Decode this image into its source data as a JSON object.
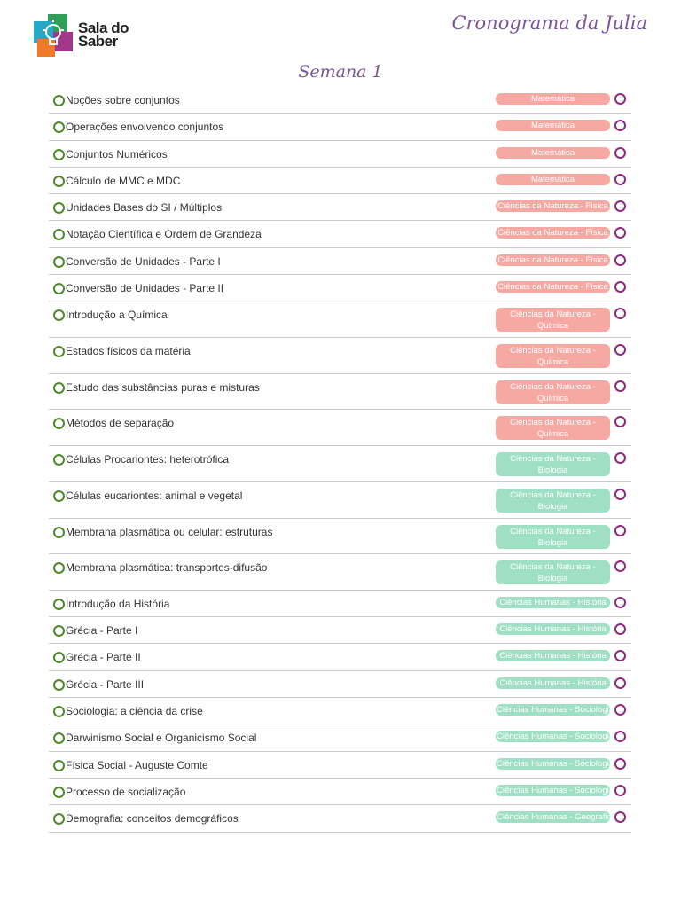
{
  "header": {
    "logo_line1": "Sala do",
    "logo_line2": "Saber",
    "schedule_title": "Cronograma da  Julia"
  },
  "week_title": "Semana 1",
  "colors": {
    "pink": "#f6a8a3",
    "green": "#9fe0c4",
    "check": "#4f8a2a",
    "done": "#8e2a7d",
    "title": "#7a559a"
  },
  "rows": [
    {
      "topic": "Noções sobre conjuntos",
      "subject": "Matemática",
      "color": "pink"
    },
    {
      "topic": "Operações envolvendo conjuntos",
      "subject": "Matemática",
      "color": "pink"
    },
    {
      "topic": "Conjuntos Numéricos",
      "subject": "Matemática",
      "color": "pink"
    },
    {
      "topic": "Cálculo de MMC e MDC",
      "subject": "Matemática",
      "color": "pink"
    },
    {
      "topic": "Unidades Bases do SI / Múltiplos",
      "subject": "Ciências da Natureza - Física",
      "color": "pink"
    },
    {
      "topic": "Notação Científica e Ordem de Grandeza",
      "subject": "Ciências da Natureza - Física",
      "color": "pink"
    },
    {
      "topic": "Conversão de Unidades - Parte I",
      "subject": "Ciências da Natureza - Física",
      "color": "pink"
    },
    {
      "topic": "Conversão de Unidades - Parte II",
      "subject": "Ciências da Natureza - Física",
      "color": "pink"
    },
    {
      "topic": "Introdução a Química",
      "subject": "Ciências da Natureza - Química",
      "color": "pink"
    },
    {
      "topic": "Estados físicos da matéria",
      "subject": "Ciências da Natureza - Química",
      "color": "pink"
    },
    {
      "topic": "Estudo das substâncias puras e misturas",
      "subject": "Ciências da Natureza - Química",
      "color": "pink"
    },
    {
      "topic": "Métodos de separação",
      "subject": "Ciências da Natureza - Química",
      "color": "pink"
    },
    {
      "topic": "Células Procariontes: heterotrófica",
      "subject": "Ciências da Natureza - Biologia",
      "color": "green"
    },
    {
      "topic": "Células eucariontes: animal e vegetal",
      "subject": "Ciências da Natureza - Biologia",
      "color": "green"
    },
    {
      "topic": "Membrana plasmática ou celular: estruturas",
      "subject": "Ciências da Natureza - Biologia",
      "color": "green"
    },
    {
      "topic": "Membrana plasmática: transportes-difusão",
      "subject": "Ciências da Natureza - Biologia",
      "color": "green"
    },
    {
      "topic": "Introdução da História",
      "subject": "Ciências Humanas - História",
      "color": "green"
    },
    {
      "topic": "Grécia - Parte I",
      "subject": "Ciências Humanas - História",
      "color": "green"
    },
    {
      "topic": "Grécia - Parte II",
      "subject": "Ciências Humanas - História",
      "color": "green"
    },
    {
      "topic": "Grécia - Parte III",
      "subject": "Ciências Humanas - História",
      "color": "green"
    },
    {
      "topic": "Sociologia: a ciência da crise",
      "subject": "Ciências Humanas - Sociologia",
      "color": "green"
    },
    {
      "topic": "Darwinismo Social e Organicismo Social",
      "subject": "Ciências Humanas - Sociologia",
      "color": "green"
    },
    {
      "topic": "Física Social - Auguste Comte",
      "subject": "Ciências Humanas - Sociologia",
      "color": "green"
    },
    {
      "topic": "Processo de socialização",
      "subject": "Ciências Humanas - Sociologia",
      "color": "green"
    },
    {
      "topic": "Demografia: conceitos demográficos",
      "subject": "Ciências Humanas - Geografia",
      "color": "green"
    }
  ]
}
